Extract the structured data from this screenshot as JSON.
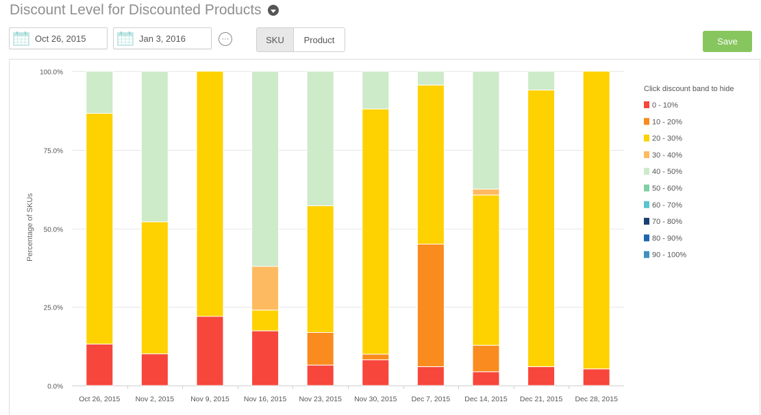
{
  "header": {
    "title": "Discount Level for Discounted Products"
  },
  "controls": {
    "start_date": "Oct 26, 2015",
    "end_date": "Jan 3, 2016",
    "more_label": "···",
    "toggle": {
      "sku": "SKU",
      "product": "Product",
      "selected": "SKU"
    },
    "save_label": "Save"
  },
  "icons": {
    "title_dropdown": "chevron-down-icon",
    "date": "calendar-icon",
    "more": "ellipsis-icon"
  },
  "colors": {
    "save": "#87c55e"
  },
  "chart_data": {
    "type": "bar",
    "stacked": true,
    "ylabel": "Percentage of SKUs",
    "ylim": [
      0,
      100
    ],
    "yticks": [
      "0.0%",
      "25.0%",
      "50.0%",
      "75.0%",
      "100.0%"
    ],
    "grid": true,
    "legend_title": "Click discount band to hide",
    "legend_position": "right",
    "categories": [
      "Oct 26, 2015",
      "Nov 2, 2015",
      "Nov 9, 2015",
      "Nov 16, 2015",
      "Nov 23, 2015",
      "Nov 30, 2015",
      "Dec 7, 2015",
      "Dec 14, 2015",
      "Dec 21, 2015",
      "Dec 28, 2015"
    ],
    "series": [
      {
        "name": "0 - 10%",
        "color": "#f7463b",
        "values": [
          13.2,
          10.1,
          22.0,
          17.4,
          6.5,
          8.2,
          6.0,
          4.4,
          6.0,
          5.3
        ]
      },
      {
        "name": "10 - 20%",
        "color": "#f98b1f",
        "values": [
          0,
          0,
          0,
          0,
          10.4,
          1.8,
          39.0,
          8.4,
          0,
          0
        ]
      },
      {
        "name": "20 - 30%",
        "color": "#fed100",
        "values": [
          73.4,
          42.0,
          78.0,
          6.6,
          40.3,
          78.0,
          50.6,
          47.8,
          88.0,
          94.7
        ]
      },
      {
        "name": "30 - 40%",
        "color": "#feba60",
        "values": [
          0,
          0,
          0,
          13.9,
          0,
          0,
          0,
          1.9,
          0,
          0
        ]
      },
      {
        "name": "40 - 50%",
        "color": "#cdeac9",
        "values": [
          13.4,
          47.9,
          0,
          62.1,
          42.8,
          12.0,
          4.4,
          37.5,
          6.0,
          0
        ]
      },
      {
        "name": "50 - 60%",
        "color": "#80cfa7",
        "values": [
          0,
          0,
          0,
          0,
          0,
          0,
          0,
          0,
          0,
          0
        ]
      },
      {
        "name": "60 - 70%",
        "color": "#5bc3cc",
        "values": [
          0,
          0,
          0,
          0,
          0,
          0,
          0,
          0,
          0,
          0
        ]
      },
      {
        "name": "70 - 80%",
        "color": "#1a3f73",
        "values": [
          0,
          0,
          0,
          0,
          0,
          0,
          0,
          0,
          0,
          0
        ]
      },
      {
        "name": "80 - 90%",
        "color": "#1e64b0",
        "values": [
          0,
          0,
          0,
          0,
          0,
          0,
          0,
          0,
          0,
          0
        ]
      },
      {
        "name": "90 - 100%",
        "color": "#3f90c0",
        "values": [
          0,
          0,
          0,
          0,
          0,
          0,
          0,
          0,
          0,
          0
        ]
      }
    ]
  }
}
